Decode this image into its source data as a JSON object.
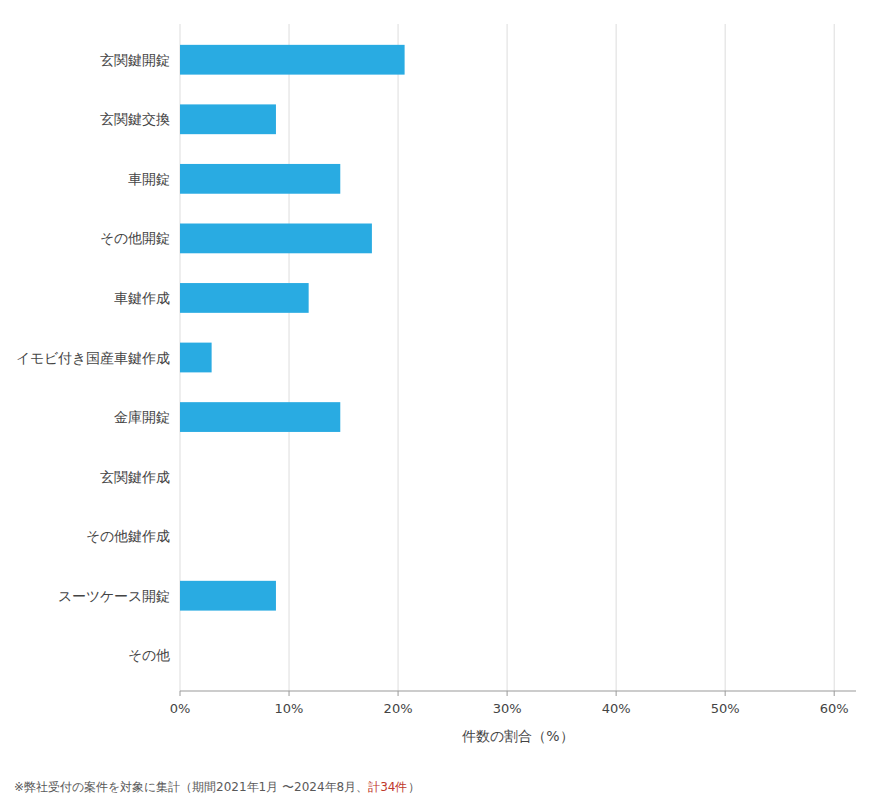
{
  "chart_data": {
    "type": "bar",
    "orientation": "horizontal",
    "categories": [
      "玄関鍵開錠",
      "玄関鍵交換",
      "車開錠",
      "その他開錠",
      "車鍵作成",
      "イモビ付き国産車鍵作成",
      "金庫開錠",
      "玄関鍵作成",
      "その他鍵作成",
      "スーツケース開錠",
      "その他"
    ],
    "values": [
      20.6,
      8.8,
      14.7,
      17.6,
      11.8,
      2.9,
      14.7,
      0.0,
      0.0,
      8.8,
      0.0
    ],
    "color": "#29ABE2",
    "xlabel": "件数の割合（%）",
    "xlim": [
      0,
      62
    ],
    "xticks": [
      {
        "value": 0,
        "label": "0%"
      },
      {
        "value": 10,
        "label": "10%"
      },
      {
        "value": 20,
        "label": "20%"
      },
      {
        "value": 30,
        "label": "30%"
      },
      {
        "value": 40,
        "label": "40%"
      },
      {
        "value": 50,
        "label": "50%"
      },
      {
        "value": 60,
        "label": "60%"
      }
    ],
    "grid": true,
    "annotations": [
      {
        "text": "※弊社受付の案件を対象に集計（期間2021年1月 〜2024年8月、",
        "color": "#595959"
      },
      {
        "text": "計34件",
        "color": "#C0392B"
      },
      {
        "text": "）",
        "color": "#595959"
      }
    ]
  }
}
